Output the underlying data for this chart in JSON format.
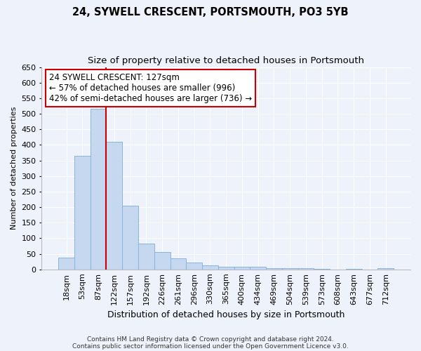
{
  "title": "24, SYWELL CRESCENT, PORTSMOUTH, PO3 5YB",
  "subtitle": "Size of property relative to detached houses in Portsmouth",
  "xlabel": "Distribution of detached houses by size in Portsmouth",
  "ylabel": "Number of detached properties",
  "footnote1": "Contains HM Land Registry data © Crown copyright and database right 2024.",
  "footnote2": "Contains public sector information licensed under the Open Government Licence v3.0.",
  "categories": [
    "18sqm",
    "53sqm",
    "87sqm",
    "122sqm",
    "157sqm",
    "192sqm",
    "226sqm",
    "261sqm",
    "296sqm",
    "330sqm",
    "365sqm",
    "400sqm",
    "434sqm",
    "469sqm",
    "504sqm",
    "539sqm",
    "573sqm",
    "608sqm",
    "643sqm",
    "677sqm",
    "712sqm"
  ],
  "values": [
    37,
    365,
    515,
    410,
    205,
    83,
    55,
    35,
    22,
    12,
    8,
    8,
    8,
    5,
    5,
    3,
    2,
    0,
    2,
    0,
    3
  ],
  "bar_color": "#c5d8f0",
  "bar_edge_color": "#89b4d9",
  "redline_x": 3,
  "annotation_line1": "24 SYWELL CRESCENT: 127sqm",
  "annotation_line2": "← 57% of detached houses are smaller (996)",
  "annotation_line3": "42% of semi-detached houses are larger (736) →",
  "annotation_box_color": "#ffffff",
  "annotation_box_edge": "#cc0000",
  "redline_color": "#cc0000",
  "ylim": [
    0,
    650
  ],
  "yticks": [
    0,
    50,
    100,
    150,
    200,
    250,
    300,
    350,
    400,
    450,
    500,
    550,
    600,
    650
  ],
  "bg_color": "#eef2fa",
  "grid_color": "#ffffff",
  "title_fontsize": 10.5,
  "subtitle_fontsize": 9.5,
  "xlabel_fontsize": 9,
  "ylabel_fontsize": 8,
  "tick_fontsize": 8,
  "footnote_fontsize": 6.5,
  "annotation_fontsize": 8.5
}
